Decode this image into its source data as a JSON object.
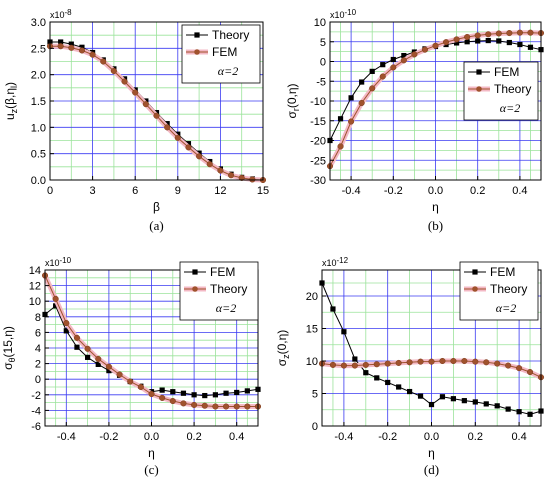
{
  "chart_data": [
    {
      "type": "line",
      "panel": "(a)",
      "exponent": "x10-8",
      "ylabel": "u_z(β,η_l)",
      "xlabel": "β",
      "xlim": [
        0,
        15
      ],
      "ylim": [
        0,
        3.0
      ],
      "xticks": [
        "0",
        "3",
        "6",
        "9",
        "12",
        "15"
      ],
      "yticks": [
        "0.0",
        "0.5",
        "1.0",
        "1.5",
        "2.0",
        "2.5",
        "3.0"
      ],
      "grid": true,
      "legend_position": "top-right",
      "legend_note": "α=2",
      "series": [
        {
          "name": "Theory",
          "color": "#000000",
          "marker": "square",
          "x": [
            0,
            0.75,
            1.5,
            2.25,
            3,
            3.75,
            4.5,
            5.25,
            6,
            6.75,
            7.5,
            8.25,
            9,
            9.75,
            10.5,
            11.25,
            12,
            12.75,
            13.5,
            14.25
          ],
          "y": [
            2.62,
            2.62,
            2.58,
            2.52,
            2.42,
            2.28,
            2.11,
            1.92,
            1.71,
            1.5,
            1.28,
            1.07,
            0.87,
            0.69,
            0.51,
            0.35,
            0.21,
            0.11,
            0.05,
            0.02
          ]
        },
        {
          "name": "FEM",
          "color": "#a0522d",
          "marker": "circle",
          "x": [
            0,
            0.75,
            1.5,
            2.25,
            3,
            3.75,
            4.5,
            5.25,
            6,
            6.75,
            7.5,
            8.25,
            9,
            9.75,
            10.5,
            11.25,
            12,
            12.75,
            13.5,
            14.25,
            15
          ],
          "y": [
            2.54,
            2.54,
            2.51,
            2.46,
            2.38,
            2.25,
            2.07,
            1.87,
            1.66,
            1.44,
            1.22,
            1.0,
            0.8,
            0.62,
            0.45,
            0.3,
            0.18,
            0.09,
            0.04,
            0.01,
            0.0
          ]
        }
      ]
    },
    {
      "type": "line",
      "panel": "(b)",
      "exponent": "x10-10",
      "ylabel": "σ_r(0,η)",
      "xlabel": "η",
      "xlim": [
        -0.5,
        0.5
      ],
      "ylim": [
        -30,
        10
      ],
      "xticks": [
        "-0.4",
        "-0.2",
        "0.0",
        "0.2",
        "0.4"
      ],
      "yticks": [
        "-30",
        "-25",
        "-20",
        "-15",
        "-10",
        "-5",
        "0",
        "5",
        "10"
      ],
      "grid": true,
      "legend_position": "middle-right",
      "legend_note": "α=2",
      "series": [
        {
          "name": "FEM",
          "color": "#000000",
          "marker": "square",
          "x": [
            -0.5,
            -0.45,
            -0.4,
            -0.35,
            -0.3,
            -0.25,
            -0.2,
            -0.15,
            -0.1,
            -0.05,
            0,
            0.05,
            0.1,
            0.15,
            0.2,
            0.25,
            0.3,
            0.35,
            0.4,
            0.45,
            0.5
          ],
          "y": [
            -20,
            -14.5,
            -9.2,
            -5.2,
            -2.5,
            -0.8,
            0.5,
            1.5,
            2.4,
            3.2,
            3.8,
            4.3,
            4.7,
            5.0,
            5.2,
            5.3,
            5.2,
            4.8,
            4.3,
            3.6,
            3.0
          ]
        },
        {
          "name": "Theory",
          "color": "#a0522d",
          "marker": "circle",
          "x": [
            -0.5,
            -0.45,
            -0.4,
            -0.35,
            -0.3,
            -0.25,
            -0.2,
            -0.15,
            -0.1,
            -0.05,
            0,
            0.05,
            0.1,
            0.15,
            0.2,
            0.25,
            0.3,
            0.35,
            0.4,
            0.45,
            0.5
          ],
          "y": [
            -26.5,
            -21.5,
            -15.2,
            -10.5,
            -6.8,
            -3.8,
            -1.5,
            0.3,
            1.8,
            3.0,
            4.0,
            4.9,
            5.6,
            6.2,
            6.6,
            6.9,
            7.1,
            7.2,
            7.3,
            7.3,
            7.2
          ]
        }
      ]
    },
    {
      "type": "line",
      "panel": "(c)",
      "exponent": "x10-10",
      "ylabel": "σ_θ(15,η)",
      "xlabel": "η",
      "xlim": [
        -0.5,
        0.5
      ],
      "ylim": [
        -6,
        14
      ],
      "xticks": [
        "-0.4",
        "-0.2",
        "0.0",
        "0.2",
        "0.4"
      ],
      "yticks": [
        "-6",
        "-4",
        "-2",
        "0",
        "2",
        "4",
        "6",
        "8",
        "10",
        "12",
        "14"
      ],
      "grid": true,
      "legend_position": "top-right",
      "legend_note": "α=2",
      "series": [
        {
          "name": "FEM",
          "color": "#000000",
          "marker": "square",
          "x": [
            -0.5,
            -0.45,
            -0.4,
            -0.35,
            -0.3,
            -0.25,
            -0.2,
            -0.15,
            -0.1,
            -0.05,
            0,
            0.05,
            0.1,
            0.15,
            0.2,
            0.25,
            0.3,
            0.35,
            0.4,
            0.45,
            0.5
          ],
          "y": [
            8.3,
            9.4,
            6.2,
            4.1,
            2.8,
            1.9,
            1.1,
            0.5,
            -0.3,
            -0.9,
            -1.6,
            -1.4,
            -1.6,
            -1.8,
            -2.0,
            -2.1,
            -2.0,
            -1.8,
            -1.7,
            -1.5,
            -1.3
          ]
        },
        {
          "name": "Theory",
          "color": "#a0522d",
          "marker": "circle",
          "x": [
            -0.5,
            -0.45,
            -0.4,
            -0.35,
            -0.3,
            -0.25,
            -0.2,
            -0.15,
            -0.1,
            -0.05,
            0,
            0.05,
            0.1,
            0.15,
            0.2,
            0.25,
            0.3,
            0.35,
            0.4,
            0.45,
            0.5
          ],
          "y": [
            13.3,
            10.3,
            7.2,
            5.3,
            3.9,
            2.6,
            1.6,
            0.6,
            -0.3,
            -1.0,
            -1.9,
            -2.4,
            -2.8,
            -3.1,
            -3.3,
            -3.4,
            -3.5,
            -3.5,
            -3.5,
            -3.5,
            -3.5
          ]
        }
      ]
    },
    {
      "type": "line",
      "panel": "(d)",
      "exponent": "x10-12",
      "ylabel": "σ_z(0,η)",
      "xlabel": "η",
      "xlim": [
        -0.5,
        0.5
      ],
      "ylim": [
        0,
        24
      ],
      "xticks": [
        "-0.4",
        "-0.2",
        "0.0",
        "0.2",
        "0.4"
      ],
      "yticks": [
        "0",
        "5",
        "10",
        "15",
        "20"
      ],
      "grid": true,
      "legend_position": "top-right",
      "legend_note": "α=2",
      "series": [
        {
          "name": "FEM",
          "color": "#000000",
          "marker": "square",
          "x": [
            -0.5,
            -0.45,
            -0.4,
            -0.35,
            -0.3,
            -0.25,
            -0.2,
            -0.15,
            -0.1,
            -0.05,
            0,
            0.05,
            0.1,
            0.15,
            0.2,
            0.25,
            0.3,
            0.35,
            0.4,
            0.45,
            0.5
          ],
          "y": [
            22.0,
            18.0,
            14.5,
            10.3,
            8.2,
            7.4,
            6.7,
            6.0,
            5.3,
            4.6,
            3.3,
            4.5,
            4.2,
            3.9,
            3.7,
            3.4,
            3.1,
            2.6,
            2.2,
            1.8,
            2.3
          ]
        },
        {
          "name": "Theory",
          "color": "#a0522d",
          "marker": "circle",
          "x": [
            -0.5,
            -0.45,
            -0.4,
            -0.35,
            -0.3,
            -0.25,
            -0.2,
            -0.15,
            -0.1,
            -0.05,
            0,
            0.05,
            0.1,
            0.15,
            0.2,
            0.25,
            0.3,
            0.35,
            0.4,
            0.45,
            0.5
          ],
          "y": [
            9.6,
            9.4,
            9.3,
            9.3,
            9.4,
            9.5,
            9.6,
            9.7,
            9.8,
            9.9,
            9.9,
            10.0,
            10.0,
            10.0,
            9.9,
            9.8,
            9.6,
            9.3,
            8.9,
            8.3,
            7.5
          ]
        }
      ]
    }
  ]
}
